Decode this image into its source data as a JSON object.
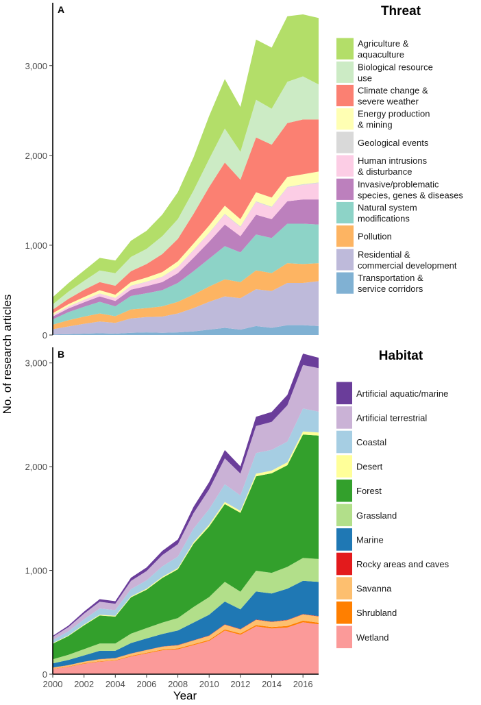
{
  "chart_data": [
    {
      "panel": "A",
      "type": "area",
      "stacked": true,
      "title": "Threat",
      "xlabel": "Year",
      "ylabel": "No. of research articles",
      "x": [
        2000,
        2001,
        2002,
        2003,
        2004,
        2005,
        2006,
        2007,
        2008,
        2009,
        2010,
        2011,
        2012,
        2013,
        2014,
        2015,
        2016,
        2017
      ],
      "ylim": [
        0,
        3700
      ],
      "yticks": [
        0,
        1000,
        2000,
        3000
      ],
      "ytick_labels": [
        "0",
        "1,000",
        "2,000",
        "3,000"
      ],
      "series": [
        {
          "name": "Transportation & service corridors",
          "label_lines": [
            "Transportation &",
            "service corridors"
          ],
          "color": "#80b1d3",
          "values": [
            5,
            10,
            15,
            20,
            15,
            25,
            30,
            25,
            30,
            40,
            60,
            80,
            60,
            100,
            80,
            110,
            110,
            100
          ]
        },
        {
          "name": "Residential & commercial development",
          "label_lines": [
            "Residential &",
            "commercial development"
          ],
          "color": "#bebada",
          "values": [
            60,
            85,
            110,
            130,
            120,
            160,
            170,
            180,
            210,
            260,
            310,
            350,
            350,
            410,
            410,
            470,
            470,
            500
          ]
        },
        {
          "name": "Pollution",
          "label_lines": [
            "Pollution"
          ],
          "color": "#fdb462",
          "values": [
            50,
            70,
            80,
            90,
            75,
            100,
            100,
            115,
            130,
            150,
            170,
            190,
            180,
            210,
            200,
            220,
            210,
            200
          ]
        },
        {
          "name": "Natural system modifications",
          "label_lines": [
            "Natural system",
            "modifications"
          ],
          "color": "#8dd3c7",
          "values": [
            60,
            90,
            110,
            130,
            110,
            150,
            165,
            180,
            210,
            260,
            310,
            370,
            330,
            400,
            390,
            440,
            450,
            430
          ]
        },
        {
          "name": "Invasive/problematic species, genes & diseases",
          "label_lines": [
            "Invasive/problematic",
            "species, genes & diseases"
          ],
          "color": "#bc80bd",
          "values": [
            30,
            40,
            50,
            60,
            60,
            70,
            80,
            90,
            110,
            150,
            190,
            240,
            180,
            220,
            210,
            250,
            270,
            280
          ]
        },
        {
          "name": "Human intrusions & disturbance",
          "label_lines": [
            "Human intrusions",
            "& disturbance"
          ],
          "color": "#fccde5",
          "values": [
            15,
            20,
            25,
            30,
            30,
            40,
            45,
            55,
            65,
            80,
            90,
            110,
            100,
            140,
            130,
            150,
            160,
            180
          ]
        },
        {
          "name": "Geological events",
          "label_lines": [
            "Geological events"
          ],
          "color": "#d9d9d9",
          "values": [
            2,
            3,
            3,
            4,
            4,
            5,
            5,
            6,
            6,
            8,
            8,
            10,
            10,
            10,
            10,
            10,
            10,
            10
          ]
        },
        {
          "name": "Energy production & mining",
          "label_lines": [
            "Energy production",
            "& mining"
          ],
          "color": "#ffffb3",
          "values": [
            20,
            25,
            30,
            35,
            35,
            40,
            45,
            50,
            60,
            70,
            80,
            90,
            80,
            100,
            100,
            110,
            110,
            120
          ]
        },
        {
          "name": "Climate change & severe weather",
          "label_lines": [
            "Climate change &",
            "severe weather"
          ],
          "color": "#fb8072",
          "values": [
            40,
            60,
            80,
            90,
            100,
            120,
            150,
            200,
            250,
            330,
            430,
            480,
            440,
            610,
            590,
            600,
            610,
            580
          ]
        },
        {
          "name": "Biological resource use",
          "label_lines": [
            "Biological resource",
            "use"
          ],
          "color": "#ccebc5",
          "values": [
            60,
            80,
            100,
            130,
            140,
            160,
            170,
            200,
            220,
            260,
            310,
            380,
            310,
            420,
            400,
            460,
            480,
            390
          ]
        },
        {
          "name": "Agriculture & aquaculture",
          "label_lines": [
            "Agriculture &",
            "aquaculture"
          ],
          "color": "#b3de69",
          "values": [
            80,
            95,
            115,
            140,
            140,
            180,
            200,
            240,
            300,
            370,
            480,
            550,
            500,
            670,
            680,
            730,
            690,
            740
          ]
        }
      ]
    },
    {
      "panel": "B",
      "type": "area",
      "stacked": true,
      "title": "Habitat",
      "xlabel": "Year",
      "ylabel": "No. of research articles",
      "x": [
        2000,
        2001,
        2002,
        2003,
        2004,
        2005,
        2006,
        2007,
        2008,
        2009,
        2010,
        2011,
        2012,
        2013,
        2014,
        2015,
        2016,
        2017
      ],
      "ylim": [
        0,
        3150
      ],
      "yticks": [
        0,
        1000,
        2000,
        3000
      ],
      "ytick_labels": [
        "0",
        "1,000",
        "2,000",
        "3,000"
      ],
      "xticks": [
        2000,
        2002,
        2004,
        2006,
        2008,
        2010,
        2012,
        2014,
        2016
      ],
      "xtick_labels": [
        "2000",
        "2002",
        "2004",
        "2006",
        "2008",
        "2010",
        "2012",
        "2014",
        "2016"
      ],
      "series": [
        {
          "name": "Wetland",
          "label_lines": [
            "Wetland"
          ],
          "color": "#fb9a99",
          "values": [
            50,
            70,
            100,
            120,
            130,
            170,
            200,
            230,
            240,
            280,
            320,
            420,
            380,
            460,
            440,
            450,
            500,
            480
          ]
        },
        {
          "name": "Shrubland",
          "label_lines": [
            "Shrubland"
          ],
          "color": "#ff7f00",
          "values": [
            3,
            4,
            5,
            5,
            5,
            6,
            7,
            7,
            8,
            9,
            10,
            12,
            12,
            14,
            14,
            15,
            16,
            16
          ]
        },
        {
          "name": "Savanna",
          "label_lines": [
            "Savanna"
          ],
          "color": "#fdbf6f",
          "values": [
            10,
            12,
            15,
            18,
            18,
            22,
            25,
            28,
            30,
            35,
            40,
            45,
            40,
            50,
            50,
            55,
            60,
            60
          ]
        },
        {
          "name": "Rocky areas and caves",
          "label_lines": [
            "Rocky areas and caves"
          ],
          "color": "#e31a1c",
          "values": [
            1,
            1,
            1,
            2,
            2,
            2,
            2,
            2,
            3,
            3,
            3,
            3,
            3,
            3,
            3,
            4,
            4,
            4
          ]
        },
        {
          "name": "Marine",
          "label_lines": [
            "Marine"
          ],
          "color": "#1f78b4",
          "values": [
            40,
            50,
            60,
            80,
            70,
            100,
            110,
            120,
            140,
            170,
            200,
            220,
            190,
            270,
            270,
            300,
            320,
            330
          ]
        },
        {
          "name": "Grassland",
          "label_lines": [
            "Grassland"
          ],
          "color": "#b2df8a",
          "values": [
            40,
            50,
            60,
            70,
            70,
            90,
            100,
            110,
            120,
            150,
            170,
            190,
            170,
            200,
            200,
            210,
            220,
            220
          ]
        },
        {
          "name": "Forest",
          "label_lines": [
            "Forest"
          ],
          "color": "#33a02c",
          "values": [
            150,
            180,
            230,
            270,
            260,
            350,
            370,
            430,
            470,
            610,
            680,
            750,
            760,
            910,
            960,
            980,
            1190,
            1190
          ]
        },
        {
          "name": "Desert",
          "label_lines": [
            "Desert"
          ],
          "color": "#ffff99",
          "values": [
            5,
            6,
            7,
            8,
            8,
            9,
            10,
            11,
            12,
            15,
            18,
            20,
            18,
            25,
            25,
            28,
            30,
            30
          ]
        },
        {
          "name": "Coastal",
          "label_lines": [
            "Coastal"
          ],
          "color": "#a6cee3",
          "values": [
            30,
            40,
            50,
            60,
            55,
            70,
            80,
            100,
            110,
            130,
            150,
            170,
            150,
            200,
            200,
            200,
            220,
            200
          ]
        },
        {
          "name": "Artificial terrestrial",
          "label_lines": [
            "Artificial terrestrial"
          ],
          "color": "#cab2d6",
          "values": [
            30,
            40,
            55,
            65,
            60,
            80,
            90,
            110,
            120,
            150,
            190,
            250,
            210,
            260,
            270,
            350,
            420,
            420
          ]
        },
        {
          "name": "Artificial aquatic/marine",
          "label_lines": [
            "Artificial aquatic/marine"
          ],
          "color": "#6a3d9a",
          "values": [
            10,
            15,
            20,
            25,
            25,
            30,
            35,
            40,
            45,
            60,
            70,
            80,
            70,
            90,
            95,
            100,
            110,
            100
          ]
        }
      ]
    }
  ]
}
